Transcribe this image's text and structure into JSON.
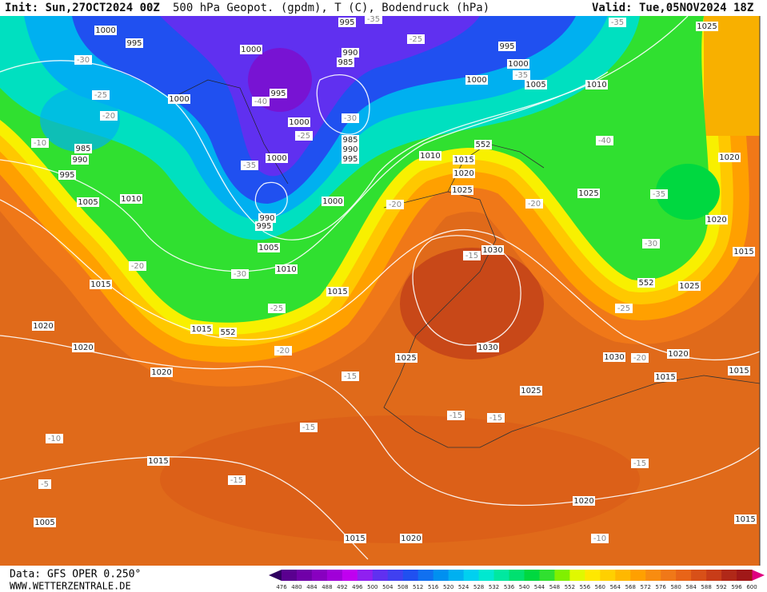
{
  "header": {
    "init": "Init: Sun,27OCT2024 00Z",
    "title": "500 hPa Geopot. (gpdm), T (C), Bodendruck (hPa)",
    "valid": "Valid: Tue,05NOV2024 18Z"
  },
  "footer": {
    "data": "Data: GFS OPER 0.250°",
    "site": "WWW.WETTERZENTRALE.DE"
  },
  "colorbar": {
    "labels": [
      476,
      480,
      484,
      488,
      492,
      496,
      500,
      504,
      508,
      512,
      516,
      520,
      524,
      528,
      532,
      536,
      540,
      544,
      548,
      552,
      556,
      560,
      564,
      568,
      572,
      576,
      580,
      584,
      588,
      592,
      596,
      600
    ],
    "colors": [
      "#5a0090",
      "#7000a8",
      "#8800c0",
      "#a000d8",
      "#c000f0",
      "#9020f0",
      "#6030f0",
      "#4040f0",
      "#2050f0",
      "#1070f0",
      "#0090f0",
      "#00b0f0",
      "#00d0f0",
      "#00e8d0",
      "#00e8a0",
      "#00e070",
      "#00d840",
      "#30e030",
      "#80f000",
      "#e0f800",
      "#ffe800",
      "#ffd000",
      "#ffb800",
      "#ffa000",
      "#f88c10",
      "#f07818",
      "#e86418",
      "#d85018",
      "#c83c18",
      "#b02818",
      "#a01818"
    ]
  },
  "map_labels": [
    "1000",
    "995",
    "1000",
    "995",
    "-35",
    "-25",
    "995",
    "1000",
    "-35",
    "1005",
    "1000",
    "1010",
    "-35",
    "1025",
    "-30",
    "-25",
    "-20",
    "1000",
    "-40",
    "995",
    "990",
    "985",
    "-30",
    "1000",
    "-25",
    "985",
    "990",
    "995",
    "1000",
    "-35",
    "-10",
    "985",
    "990",
    "995",
    "1005",
    "1010",
    "1000",
    "-20",
    "990",
    "995",
    "1005",
    "1010",
    "-30",
    "-20",
    "1015",
    "1020",
    "1015",
    "552",
    "-25",
    "1015",
    "-20",
    "1020",
    "1020",
    "1010",
    "1015",
    "552",
    "1020",
    "1025",
    "-20",
    "1025",
    "-40",
    "1020",
    "-35",
    "1020",
    "-30",
    "1015",
    "552",
    "1025",
    "-25",
    "-15",
    "1030",
    "1030",
    "1025",
    "1030",
    "-20",
    "1020",
    "1015",
    "1015",
    "1025",
    "-15",
    "-15",
    "-15",
    "-15",
    "-10",
    "1015",
    "-15",
    "-15",
    "1020",
    "1005",
    "1015",
    "1020",
    "-10",
    "1015",
    "-5"
  ]
}
